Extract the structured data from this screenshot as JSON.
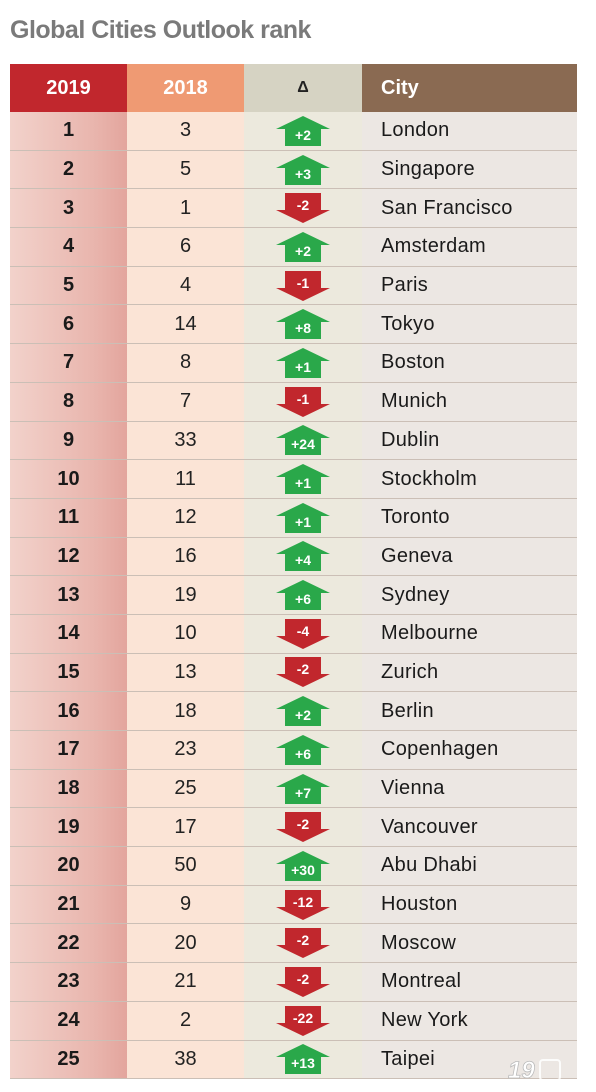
{
  "title": "Global Cities Outlook rank",
  "header": {
    "col_2019": "2019",
    "col_2018": "2018",
    "col_delta": "Δ",
    "col_city": "City"
  },
  "colors": {
    "up": "#2aa84a",
    "down": "#c1272d",
    "h2019": "#c1272d",
    "h2018": "#ef9a73",
    "hcity": "#8a6a52"
  },
  "chart_data": {
    "type": "table",
    "columns": [
      "2019",
      "2018",
      "Δ",
      "City"
    ],
    "rows": [
      {
        "rank_2019": "1",
        "rank_2018": "3",
        "delta": "+2",
        "city": "London"
      },
      {
        "rank_2019": "2",
        "rank_2018": "5",
        "delta": "+3",
        "city": "Singapore"
      },
      {
        "rank_2019": "3",
        "rank_2018": "1",
        "delta": "-2",
        "city": "San Francisco"
      },
      {
        "rank_2019": "4",
        "rank_2018": "6",
        "delta": "+2",
        "city": "Amsterdam"
      },
      {
        "rank_2019": "5",
        "rank_2018": "4",
        "delta": "-1",
        "city": "Paris"
      },
      {
        "rank_2019": "6",
        "rank_2018": "14",
        "delta": "+8",
        "city": "Tokyo"
      },
      {
        "rank_2019": "7",
        "rank_2018": "8",
        "delta": "+1",
        "city": "Boston"
      },
      {
        "rank_2019": "8",
        "rank_2018": "7",
        "delta": "-1",
        "city": "Munich"
      },
      {
        "rank_2019": "9",
        "rank_2018": "33",
        "delta": "+24",
        "city": "Dublin"
      },
      {
        "rank_2019": "10",
        "rank_2018": "11",
        "delta": "+1",
        "city": "Stockholm"
      },
      {
        "rank_2019": "11",
        "rank_2018": "12",
        "delta": "+1",
        "city": "Toronto"
      },
      {
        "rank_2019": "12",
        "rank_2018": "16",
        "delta": "+4",
        "city": "Geneva"
      },
      {
        "rank_2019": "13",
        "rank_2018": "19",
        "delta": "+6",
        "city": "Sydney"
      },
      {
        "rank_2019": "14",
        "rank_2018": "10",
        "delta": "-4",
        "city": "Melbourne"
      },
      {
        "rank_2019": "15",
        "rank_2018": "13",
        "delta": "-2",
        "city": "Zurich"
      },
      {
        "rank_2019": "16",
        "rank_2018": "18",
        "delta": "+2",
        "city": "Berlin"
      },
      {
        "rank_2019": "17",
        "rank_2018": "23",
        "delta": "+6",
        "city": "Copenhagen"
      },
      {
        "rank_2019": "18",
        "rank_2018": "25",
        "delta": "+7",
        "city": "Vienna"
      },
      {
        "rank_2019": "19",
        "rank_2018": "17",
        "delta": "-2",
        "city": "Vancouver"
      },
      {
        "rank_2019": "20",
        "rank_2018": "50",
        "delta": "+30",
        "city": "Abu Dhabi"
      },
      {
        "rank_2019": "21",
        "rank_2018": "9",
        "delta": "-12",
        "city": "Houston"
      },
      {
        "rank_2019": "22",
        "rank_2018": "20",
        "delta": "-2",
        "city": "Moscow"
      },
      {
        "rank_2019": "23",
        "rank_2018": "21",
        "delta": "-2",
        "city": "Montreal"
      },
      {
        "rank_2019": "24",
        "rank_2018": "2",
        "delta": "-22",
        "city": "New York"
      },
      {
        "rank_2019": "25",
        "rank_2018": "38",
        "delta": "+13",
        "city": "Taipei"
      }
    ]
  },
  "watermark": {
    "text": "19"
  }
}
